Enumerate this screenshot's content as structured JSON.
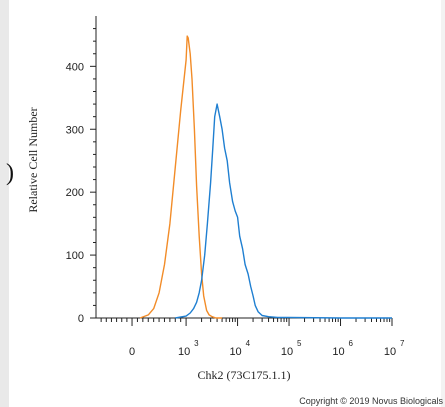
{
  "chart_data": {
    "type": "line",
    "xlabel": "Chk2 (73C175.1.1)",
    "ylabel": "Relative Cell Number",
    "x_scale": "biexponential",
    "x_ticks": [
      {
        "base": "0",
        "exp": "",
        "value": 0
      },
      {
        "base": "10",
        "exp": "3",
        "value": 1000
      },
      {
        "base": "10",
        "exp": "4",
        "value": 10000
      },
      {
        "base": "10",
        "exp": "5",
        "value": 100000
      },
      {
        "base": "10",
        "exp": "6",
        "value": 1000000
      },
      {
        "base": "10",
        "exp": "7",
        "value": 10000000
      }
    ],
    "y_ticks": [
      "0",
      "100",
      "200",
      "300",
      "400"
    ],
    "ylim": [
      0,
      480
    ],
    "series": [
      {
        "color": "#f28c28",
        "x": [
          150,
          300,
          400,
          500,
          600,
          700,
          800,
          900,
          1000,
          1050,
          1100,
          1200,
          1300,
          1450,
          1600,
          1800,
          2000,
          2200,
          2500,
          2800,
          3200,
          3800,
          5000
        ],
        "y": [
          0,
          5,
          15,
          40,
          85,
          150,
          240,
          330,
          410,
          448,
          445,
          420,
          380,
          300,
          210,
          130,
          70,
          35,
          12,
          5,
          2,
          0,
          0
        ]
      },
      {
        "color": "#1f7fd1",
        "x": [
          800,
          1000,
          1200,
          1400,
          1600,
          1800,
          2000,
          2300,
          2600,
          3000,
          3300,
          3600,
          4000,
          4500,
          5000,
          5600,
          6300,
          7000,
          8000,
          9000,
          10000,
          11000,
          12500,
          14000,
          16000,
          18000,
          20000,
          22000,
          25000,
          30000,
          40000,
          60000,
          100000,
          1000000,
          10000000
        ],
        "y": [
          0,
          3,
          8,
          15,
          25,
          40,
          60,
          100,
          150,
          215,
          270,
          320,
          340,
          320,
          300,
          270,
          250,
          215,
          185,
          170,
          160,
          130,
          110,
          85,
          70,
          50,
          35,
          20,
          10,
          4,
          2,
          1,
          1,
          0,
          0
        ]
      }
    ]
  },
  "copyright": "Copyright © 2019 Novus Biologicals",
  "left_mark": ")"
}
